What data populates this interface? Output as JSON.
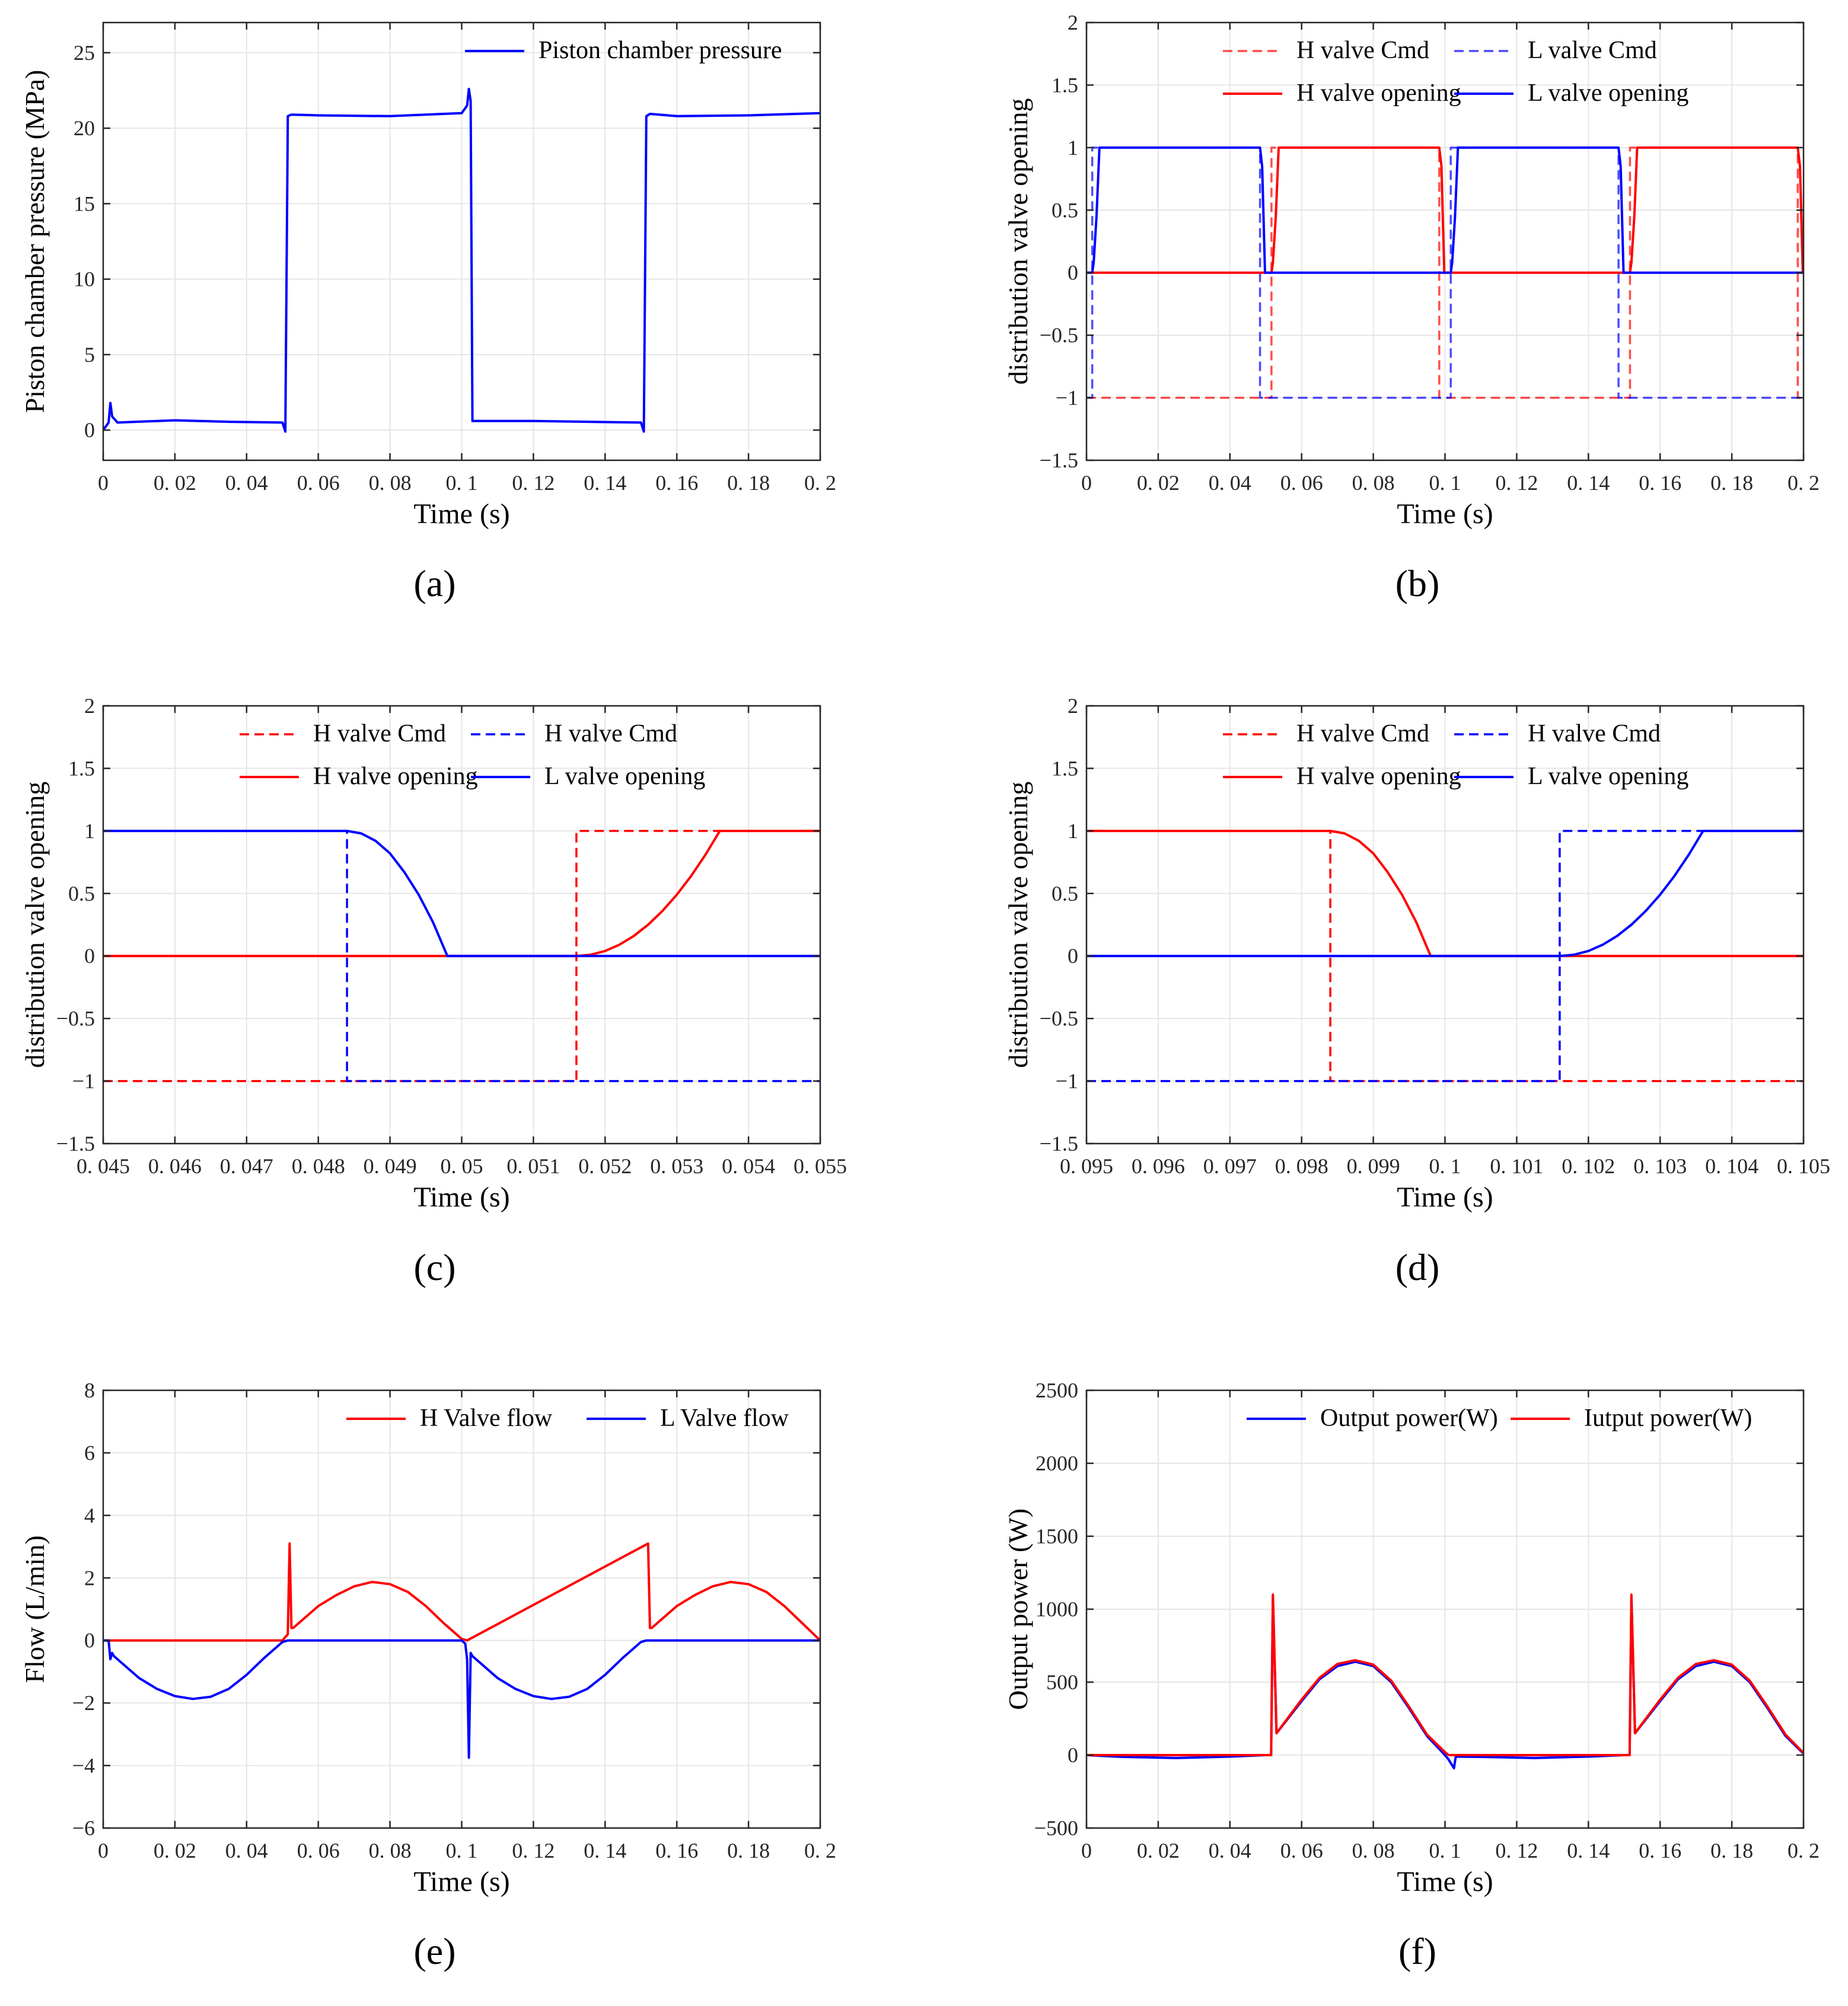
{
  "colors": {
    "red": "#ff0000",
    "blue": "#0000ff",
    "grid": "#e6e6e6",
    "axis": "#262626"
  },
  "panels": [
    {
      "label": "(a)",
      "label_letter": "a"
    },
    {
      "label": "(b)",
      "label_letter": "b"
    },
    {
      "label": "(c)",
      "label_letter": "c"
    },
    {
      "label": "(d)",
      "label_letter": "d"
    },
    {
      "label": "(e)",
      "label_letter": "e"
    },
    {
      "label": "(f)",
      "label_letter": "f"
    }
  ],
  "chart_data": [
    {
      "id": "a",
      "type": "line",
      "xlabel": "Time (s)",
      "ylabel": "Piston chamber pressure (MPa)",
      "xlim": [
        0,
        0.2
      ],
      "ylim": [
        -2,
        27
      ],
      "xticks": [
        0,
        0.02,
        0.04,
        0.06,
        0.08,
        0.1,
        0.12,
        0.14,
        0.16,
        0.18,
        0.2
      ],
      "xticklabels": [
        "0",
        "0. 02",
        "0. 04",
        "0. 06",
        "0. 08",
        "0. 1",
        "0. 12",
        "0. 14",
        "0. 16",
        "0. 18",
        "0. 2"
      ],
      "yticks": [
        0,
        5,
        10,
        15,
        20,
        25
      ],
      "yticklabels": [
        "0",
        "5",
        "10",
        "15",
        "20",
        "25"
      ],
      "legend_layout": "single-row",
      "legend_location": "top-right",
      "series": [
        {
          "name": "Piston chamber pressure",
          "color": "#0000ff",
          "style": "solid",
          "x": [
            0,
            0.0015,
            0.002,
            0.0025,
            0.004,
            0.02,
            0.035,
            0.05,
            0.0508,
            0.0515,
            0.0525,
            0.06,
            0.08,
            0.1,
            0.1015,
            0.102,
            0.1025,
            0.103,
            0.12,
            0.15,
            0.1508,
            0.1515,
            0.1525,
            0.16,
            0.18,
            0.2
          ],
          "y": [
            0,
            0.5,
            1.8,
            0.9,
            0.5,
            0.65,
            0.55,
            0.5,
            -0.1,
            20.8,
            20.9,
            20.85,
            20.8,
            21.0,
            21.5,
            22.6,
            21.8,
            0.6,
            0.6,
            0.5,
            -0.1,
            20.8,
            20.95,
            20.8,
            20.85,
            21.0
          ]
        }
      ]
    },
    {
      "id": "b",
      "type": "line",
      "xlabel": "Time (s)",
      "ylabel": "distribution valve opening",
      "xlim": [
        0,
        0.2
      ],
      "ylim": [
        -1.5,
        2
      ],
      "xticks": [
        0,
        0.02,
        0.04,
        0.06,
        0.08,
        0.1,
        0.12,
        0.14,
        0.16,
        0.18,
        0.2
      ],
      "xticklabels": [
        "0",
        "0. 02",
        "0. 04",
        "0. 06",
        "0. 08",
        "0. 1",
        "0. 12",
        "0. 14",
        "0. 16",
        "0. 18",
        "0. 2"
      ],
      "yticks": [
        -1.5,
        -1,
        -0.5,
        0,
        0.5,
        1,
        1.5,
        2
      ],
      "yticklabels": [
        "−1.5",
        "−1",
        "−0.5",
        "0",
        "0.5",
        "1",
        "1.5",
        "2"
      ],
      "legend_layout": "grid-2x2",
      "legend_location": "top",
      "series": [
        {
          "name": "H valve Cmd",
          "color": "#ff0000",
          "style": "dashed",
          "opacity": 0.7,
          "x": [
            0,
            0.0516,
            0.0516,
            0.0984,
            0.0984,
            0.1516,
            0.1516,
            0.1984,
            0.1984,
            0.2
          ],
          "y": [
            -1,
            -1,
            1,
            1,
            -1,
            -1,
            1,
            1,
            -1,
            -1
          ]
        },
        {
          "name": "L valve Cmd",
          "color": "#0000ff",
          "style": "dashed",
          "opacity": 0.7,
          "x": [
            0,
            0.0016,
            0.0016,
            0.0484,
            0.0484,
            0.1016,
            0.1016,
            0.1484,
            0.1484,
            0.2
          ],
          "y": [
            -1,
            -1,
            1,
            1,
            -1,
            -1,
            1,
            1,
            -1,
            -1
          ]
        },
        {
          "name": "H valve opening",
          "color": "#ff0000",
          "style": "solid",
          "x": [
            0,
            0.0516,
            0.052,
            0.0528,
            0.0536,
            0.0984,
            0.099,
            0.0998,
            0.1516,
            0.152,
            0.1528,
            0.1536,
            0.1984,
            0.199,
            0.1998,
            0.2
          ],
          "y": [
            0,
            0,
            0.08,
            0.45,
            1,
            1,
            0.85,
            0,
            0,
            0.08,
            0.45,
            1,
            1,
            0.85,
            0,
            0
          ]
        },
        {
          "name": "L valve opening",
          "color": "#0000ff",
          "style": "solid",
          "x": [
            0,
            0.0016,
            0.002,
            0.0028,
            0.0036,
            0.0484,
            0.049,
            0.0498,
            0.1016,
            0.102,
            0.1028,
            0.1036,
            0.1484,
            0.149,
            0.1498,
            0.2
          ],
          "y": [
            0,
            0,
            0.08,
            0.45,
            1,
            1,
            0.85,
            0,
            0,
            0.08,
            0.45,
            1,
            1,
            0.85,
            0,
            0
          ]
        }
      ]
    },
    {
      "id": "c",
      "type": "line",
      "xlabel": "Time (s)",
      "ylabel": "distribution valve opening",
      "xlim": [
        0.045,
        0.055
      ],
      "ylim": [
        -1.5,
        2
      ],
      "xticks": [
        0.045,
        0.046,
        0.047,
        0.048,
        0.049,
        0.05,
        0.051,
        0.052,
        0.053,
        0.054,
        0.055
      ],
      "xticklabels": [
        "0. 045",
        "0. 046",
        "0. 047",
        "0. 048",
        "0. 049",
        "0. 05",
        "0. 051",
        "0. 052",
        "0. 053",
        "0. 054",
        "0. 055"
      ],
      "yticks": [
        -1.5,
        -1,
        -0.5,
        0,
        0.5,
        1,
        1.5,
        2
      ],
      "yticklabels": [
        "−1.5",
        "−1",
        "−0.5",
        "0",
        "0.5",
        "1",
        "1.5",
        "2"
      ],
      "legend_layout": "grid-2x2",
      "legend_location": "top",
      "series": [
        {
          "name": "H valve Cmd",
          "color": "#ff0000",
          "style": "dashed",
          "x": [
            0.045,
            0.0516,
            0.0516,
            0.055
          ],
          "y": [
            -1,
            -1,
            1,
            1
          ]
        },
        {
          "name": "H valve Cmd",
          "color": "#0000ff",
          "style": "dashed",
          "x": [
            0.045,
            0.0484,
            0.0484,
            0.055
          ],
          "y": [
            1,
            1,
            -1,
            -1
          ]
        },
        {
          "name": "H valve opening",
          "color": "#ff0000",
          "style": "solid",
          "x": [
            0.045,
            0.0516,
            0.0518,
            0.052,
            0.0522,
            0.0524,
            0.0526,
            0.0528,
            0.053,
            0.0532,
            0.0534,
            0.0536,
            0.055
          ],
          "y": [
            0,
            0,
            0.01,
            0.04,
            0.09,
            0.16,
            0.25,
            0.36,
            0.49,
            0.64,
            0.81,
            1,
            1
          ]
        },
        {
          "name": "L valve opening",
          "color": "#0000ff",
          "style": "solid",
          "x": [
            0.045,
            0.0484,
            0.0486,
            0.0488,
            0.049,
            0.0492,
            0.0494,
            0.0496,
            0.0498,
            0.055
          ],
          "y": [
            1,
            1,
            0.98,
            0.92,
            0.82,
            0.67,
            0.49,
            0.27,
            0,
            0
          ]
        }
      ]
    },
    {
      "id": "d",
      "type": "line",
      "xlabel": "Time (s)",
      "ylabel": "distribution valve opening",
      "xlim": [
        0.095,
        0.105
      ],
      "ylim": [
        -1.5,
        2
      ],
      "xticks": [
        0.095,
        0.096,
        0.097,
        0.098,
        0.099,
        0.1,
        0.101,
        0.102,
        0.103,
        0.104,
        0.105
      ],
      "xticklabels": [
        "0. 095",
        "0. 096",
        "0. 097",
        "0. 098",
        "0. 099",
        "0. 1",
        "0. 101",
        "0. 102",
        "0. 103",
        "0. 104",
        "0. 105"
      ],
      "yticks": [
        -1.5,
        -1,
        -0.5,
        0,
        0.5,
        1,
        1.5,
        2
      ],
      "yticklabels": [
        "−1.5",
        "−1",
        "−0.5",
        "0",
        "0.5",
        "1",
        "1.5",
        "2"
      ],
      "legend_layout": "grid-2x2",
      "legend_location": "top",
      "series": [
        {
          "name": "H valve Cmd",
          "color": "#ff0000",
          "style": "dashed",
          "x": [
            0.095,
            0.0984,
            0.0984,
            0.105
          ],
          "y": [
            1,
            1,
            -1,
            -1
          ]
        },
        {
          "name": "H valve Cmd",
          "color": "#0000ff",
          "style": "dashed",
          "x": [
            0.095,
            0.1016,
            0.1016,
            0.105
          ],
          "y": [
            -1,
            -1,
            1,
            1
          ]
        },
        {
          "name": "H valve opening",
          "color": "#ff0000",
          "style": "solid",
          "x": [
            0.095,
            0.0984,
            0.0986,
            0.0988,
            0.099,
            0.0992,
            0.0994,
            0.0996,
            0.0998,
            0.105
          ],
          "y": [
            1,
            1,
            0.98,
            0.92,
            0.82,
            0.67,
            0.49,
            0.27,
            0,
            0
          ]
        },
        {
          "name": "L valve opening",
          "color": "#0000ff",
          "style": "solid",
          "x": [
            0.095,
            0.1016,
            0.1018,
            0.102,
            0.1022,
            0.1024,
            0.1026,
            0.1028,
            0.103,
            0.1032,
            0.1034,
            0.1036,
            0.105
          ],
          "y": [
            0,
            0,
            0.01,
            0.04,
            0.09,
            0.16,
            0.25,
            0.36,
            0.49,
            0.64,
            0.81,
            1,
            1
          ]
        }
      ]
    },
    {
      "id": "e",
      "type": "line",
      "xlabel": "Time (s)",
      "ylabel": "Flow (L/min)",
      "xlim": [
        0,
        0.2
      ],
      "ylim": [
        -6,
        8
      ],
      "xticks": [
        0,
        0.02,
        0.04,
        0.06,
        0.08,
        0.1,
        0.12,
        0.14,
        0.16,
        0.18,
        0.2
      ],
      "xticklabels": [
        "0",
        "0. 02",
        "0. 04",
        "0. 06",
        "0. 08",
        "0. 1",
        "0. 12",
        "0. 14",
        "0. 16",
        "0. 18",
        "0. 2"
      ],
      "yticks": [
        -6,
        -4,
        -2,
        0,
        2,
        4,
        6,
        8
      ],
      "yticklabels": [
        "−6",
        "−4",
        "−2",
        "0",
        "2",
        "4",
        "6",
        "8"
      ],
      "legend_layout": "single-row",
      "legend_location": "top-right",
      "series": [
        {
          "name": "H Valve flow",
          "color": "#ff0000",
          "style": "solid",
          "x": [
            0,
            0.05,
            0.0515,
            0.052,
            0.0525,
            0.053,
            0.06,
            0.065,
            0.07,
            0.075,
            0.08,
            0.085,
            0.09,
            0.095,
            0.1,
            0.1015,
            0.152,
            0.1525,
            0.153,
            0.16,
            0.165,
            0.17,
            0.175,
            0.18,
            0.185,
            0.19,
            0.195,
            0.2
          ],
          "y": [
            0,
            0,
            0.2,
            3.1,
            0.4,
            0.4,
            1.1,
            1.45,
            1.73,
            1.87,
            1.8,
            1.55,
            1.1,
            0.55,
            0.05,
            0,
            3.1,
            0.4,
            0.4,
            1.1,
            1.45,
            1.73,
            1.87,
            1.8,
            1.55,
            1.1,
            0.55,
            0
          ]
        },
        {
          "name": "L Valve flow",
          "color": "#0000ff",
          "style": "solid",
          "x": [
            0,
            0.0015,
            0.002,
            0.0025,
            0.003,
            0.01,
            0.015,
            0.02,
            0.025,
            0.03,
            0.035,
            0.04,
            0.045,
            0.05,
            0.0515,
            0.1,
            0.101,
            0.1015,
            0.102,
            0.1025,
            0.103,
            0.11,
            0.115,
            0.12,
            0.125,
            0.13,
            0.135,
            0.14,
            0.145,
            0.15,
            0.1515,
            0.2
          ],
          "y": [
            0,
            0,
            -0.6,
            -0.4,
            -0.5,
            -1.2,
            -1.55,
            -1.78,
            -1.87,
            -1.8,
            -1.55,
            -1.1,
            -0.55,
            -0.05,
            0,
            0,
            -0.1,
            -0.6,
            -3.75,
            -0.4,
            -0.5,
            -1.2,
            -1.55,
            -1.78,
            -1.87,
            -1.8,
            -1.55,
            -1.1,
            -0.55,
            -0.05,
            0,
            0
          ]
        }
      ]
    },
    {
      "id": "f",
      "type": "line",
      "xlabel": "Time (s)",
      "ylabel": "Output power (W)",
      "xlim": [
        0,
        0.2
      ],
      "ylim": [
        -500,
        2500
      ],
      "xticks": [
        0,
        0.02,
        0.04,
        0.06,
        0.08,
        0.1,
        0.12,
        0.14,
        0.16,
        0.18,
        0.2
      ],
      "xticklabels": [
        "0",
        "0. 02",
        "0. 04",
        "0. 06",
        "0. 08",
        "0. 1",
        "0. 12",
        "0. 14",
        "0. 16",
        "0. 18",
        "0. 2"
      ],
      "yticks": [
        -500,
        0,
        500,
        1000,
        1500,
        2000,
        2500
      ],
      "yticklabels": [
        "−500",
        "0",
        "500",
        "1000",
        "1500",
        "2000",
        "2500"
      ],
      "legend_layout": "single-row",
      "legend_location": "top-right",
      "series": [
        {
          "name": "Output power(W)",
          "color": "#0000ff",
          "style": "solid",
          "x": [
            0,
            0.01,
            0.025,
            0.04,
            0.05,
            0.0515,
            0.052,
            0.053,
            0.06,
            0.065,
            0.07,
            0.075,
            0.08,
            0.085,
            0.09,
            0.095,
            0.1,
            0.101,
            0.1025,
            0.103,
            0.11,
            0.125,
            0.14,
            0.15,
            0.1515,
            0.152,
            0.153,
            0.16,
            0.165,
            0.17,
            0.175,
            0.18,
            0.185,
            0.19,
            0.195,
            0.2
          ],
          "y": [
            0,
            -12,
            -20,
            -10,
            0,
            0,
            1080,
            150,
            370,
            520,
            610,
            640,
            610,
            500,
            320,
            130,
            0,
            -30,
            -90,
            -10,
            -12,
            -20,
            -10,
            0,
            0,
            1080,
            150,
            370,
            520,
            610,
            640,
            610,
            500,
            320,
            130,
            10
          ]
        },
        {
          "name": "Iutput power(W)",
          "color": "#ff0000",
          "style": "solid",
          "x": [
            0,
            0.05,
            0.0515,
            0.052,
            0.053,
            0.06,
            0.065,
            0.07,
            0.075,
            0.08,
            0.085,
            0.09,
            0.095,
            0.1,
            0.101,
            0.15,
            0.1515,
            0.152,
            0.153,
            0.16,
            0.165,
            0.17,
            0.175,
            0.18,
            0.185,
            0.19,
            0.195,
            0.2
          ],
          "y": [
            0,
            0,
            0,
            1100,
            150,
            380,
            530,
            625,
            650,
            620,
            510,
            330,
            140,
            20,
            0,
            0,
            0,
            1100,
            150,
            380,
            530,
            625,
            650,
            620,
            510,
            330,
            140,
            15
          ]
        }
      ]
    }
  ]
}
